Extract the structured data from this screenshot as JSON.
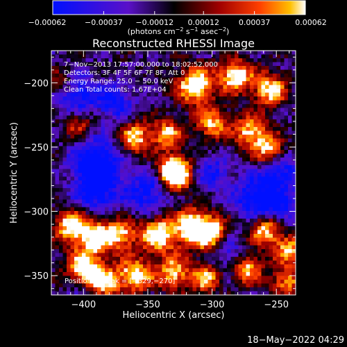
{
  "chart_data": {
    "type": "heatmap",
    "title": "Reconstructed RHESSI Image",
    "xlabel": "Heliocentric X (arcsec)",
    "ylabel": "Heliocentric Y (arcsec)",
    "xlim": [
      -425,
      -235
    ],
    "ylim": [
      -365,
      -175
    ],
    "x_ticks": [
      -400,
      -350,
      -300,
      -250
    ],
    "y_ticks": [
      -350,
      -300,
      -250,
      -200
    ],
    "x_tick_labels": [
      "−400",
      "−350",
      "−300",
      "−250"
    ],
    "y_tick_labels": [
      "−350",
      "−300",
      "−250",
      "−200"
    ],
    "colorbar": {
      "min": -0.00062,
      "max": 0.00062,
      "ticks": [
        -0.00062,
        -0.00037,
        -0.00012,
        0.00012,
        0.00037,
        0.00062
      ],
      "tick_labels": [
        "−0.00062",
        "−0.00037",
        "−0.00012",
        "0.00012",
        "0.00037",
        "0.00062"
      ],
      "unit_prefix": "(photons cm",
      "unit_exp1": "−2",
      "unit_mid1": " s",
      "unit_exp2": "−1",
      "unit_mid2": " asec",
      "unit_exp3": "−2",
      "unit_suffix": ")"
    },
    "annotations": [
      "7−Nov−2013 17:57:00.000 to 18:02:52.000",
      "Detectors: 3F 4F 5F 6F 7F 8F, Att 0",
      "Energy Range: 25.0 − 50.0 keV",
      "Clean    Total counts: 1.67E+04"
    ],
    "peak_label": "Position of Peak = [−329,−270]",
    "peak": [
      -329,
      -270
    ],
    "timestamp": "18−May−2022 04:29"
  }
}
